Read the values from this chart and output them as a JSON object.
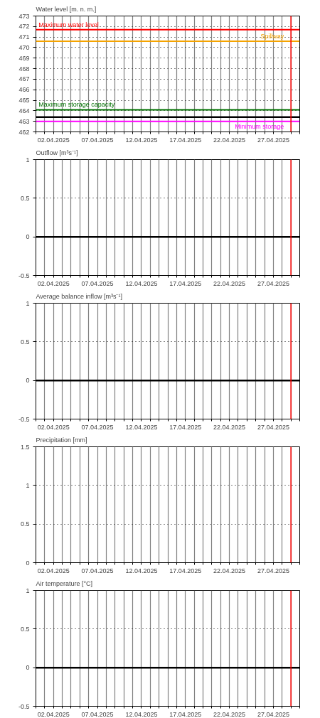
{
  "chart_data": [
    {
      "type": "line",
      "title": "Water level [m. n. m.]",
      "xlim": [
        "2025-03-31",
        "2025-04-30"
      ],
      "ylim": [
        462,
        473
      ],
      "yticks": [
        462,
        463,
        464,
        465,
        466,
        467,
        468,
        469,
        470,
        471,
        472,
        473
      ],
      "grid": true,
      "xticks": [
        {
          "value": "2025-03-31",
          "label": null
        },
        {
          "value": "2025-04-01",
          "label": null
        },
        {
          "value": "2025-04-02",
          "label": "02.04.2025"
        },
        {
          "value": "2025-04-03",
          "label": null
        },
        {
          "value": "2025-04-04",
          "label": null
        },
        {
          "value": "2025-04-05",
          "label": null
        },
        {
          "value": "2025-04-06",
          "label": null
        },
        {
          "value": "2025-04-07",
          "label": "07.04.2025"
        },
        {
          "value": "2025-04-08",
          "label": null
        },
        {
          "value": "2025-04-09",
          "label": null
        },
        {
          "value": "2025-04-10",
          "label": null
        },
        {
          "value": "2025-04-11",
          "label": null
        },
        {
          "value": "2025-04-12",
          "label": "12.04.2025"
        },
        {
          "value": "2025-04-13",
          "label": null
        },
        {
          "value": "2025-04-14",
          "label": null
        },
        {
          "value": "2025-04-15",
          "label": null
        },
        {
          "value": "2025-04-16",
          "label": null
        },
        {
          "value": "2025-04-17",
          "label": "17.04.2025"
        },
        {
          "value": "2025-04-18",
          "label": null
        },
        {
          "value": "2025-04-19",
          "label": null
        },
        {
          "value": "2025-04-20",
          "label": null
        },
        {
          "value": "2025-04-21",
          "label": null
        },
        {
          "value": "2025-04-22",
          "label": "22.04.2025"
        },
        {
          "value": "2025-04-23",
          "label": null
        },
        {
          "value": "2025-04-24",
          "label": null
        },
        {
          "value": "2025-04-25",
          "label": null
        },
        {
          "value": "2025-04-26",
          "label": null
        },
        {
          "value": "2025-04-27",
          "label": "27.04.2025"
        },
        {
          "value": "2025-04-28",
          "label": null
        },
        {
          "value": "2025-04-29",
          "label": null
        },
        {
          "value": "2025-04-30",
          "label": null
        }
      ],
      "ref_lines": [
        {
          "axis": "y",
          "value": 471.7,
          "label": "Maximum water level",
          "color": "#ff0000"
        },
        {
          "axis": "y",
          "value": 470.6,
          "label": "Spillway",
          "color": "#f5a300"
        },
        {
          "axis": "y",
          "value": 464.1,
          "label": "Maximum storage capacity",
          "color": "#007000"
        },
        {
          "axis": "y",
          "value": 463.4,
          "color": "#000000"
        },
        {
          "axis": "y",
          "value": 463.0,
          "label": "Minimum storage",
          "color": "#ff00ff"
        },
        {
          "axis": "x",
          "value": "2025-04-29",
          "color": "#ff0000"
        }
      ]
    },
    {
      "type": "line",
      "title": "Outflow [m³s⁻¹]",
      "xlim": [
        "2025-03-31",
        "2025-04-30"
      ],
      "ylim": [
        -0.5,
        1
      ],
      "yticks": [
        -0.5,
        0,
        0.5,
        1
      ],
      "grid": true,
      "xticks": [
        {
          "value": "2025-03-31",
          "label": null
        },
        {
          "value": "2025-04-01",
          "label": null
        },
        {
          "value": "2025-04-02",
          "label": "02.04.2025"
        },
        {
          "value": "2025-04-03",
          "label": null
        },
        {
          "value": "2025-04-04",
          "label": null
        },
        {
          "value": "2025-04-05",
          "label": null
        },
        {
          "value": "2025-04-06",
          "label": null
        },
        {
          "value": "2025-04-07",
          "label": "07.04.2025"
        },
        {
          "value": "2025-04-08",
          "label": null
        },
        {
          "value": "2025-04-09",
          "label": null
        },
        {
          "value": "2025-04-10",
          "label": null
        },
        {
          "value": "2025-04-11",
          "label": null
        },
        {
          "value": "2025-04-12",
          "label": "12.04.2025"
        },
        {
          "value": "2025-04-13",
          "label": null
        },
        {
          "value": "2025-04-14",
          "label": null
        },
        {
          "value": "2025-04-15",
          "label": null
        },
        {
          "value": "2025-04-16",
          "label": null
        },
        {
          "value": "2025-04-17",
          "label": "17.04.2025"
        },
        {
          "value": "2025-04-18",
          "label": null
        },
        {
          "value": "2025-04-19",
          "label": null
        },
        {
          "value": "2025-04-20",
          "label": null
        },
        {
          "value": "2025-04-21",
          "label": null
        },
        {
          "value": "2025-04-22",
          "label": "22.04.2025"
        },
        {
          "value": "2025-04-23",
          "label": null
        },
        {
          "value": "2025-04-24",
          "label": null
        },
        {
          "value": "2025-04-25",
          "label": null
        },
        {
          "value": "2025-04-26",
          "label": null
        },
        {
          "value": "2025-04-27",
          "label": "27.04.2025"
        },
        {
          "value": "2025-04-28",
          "label": null
        },
        {
          "value": "2025-04-29",
          "label": null
        },
        {
          "value": "2025-04-30",
          "label": null
        }
      ],
      "ref_lines": [
        {
          "axis": "y",
          "value": 0,
          "color": "#000000"
        },
        {
          "axis": "x",
          "value": "2025-04-29",
          "color": "#ff0000"
        }
      ]
    },
    {
      "type": "line",
      "title": "Average balance inflow  [m³s⁻¹]",
      "xlim": [
        "2025-03-31",
        "2025-04-30"
      ],
      "ylim": [
        -0.5,
        1
      ],
      "yticks": [
        -0.5,
        0,
        0.5,
        1
      ],
      "grid": true,
      "xticks": [
        {
          "value": "2025-03-31",
          "label": null
        },
        {
          "value": "2025-04-01",
          "label": null
        },
        {
          "value": "2025-04-02",
          "label": "02.04.2025"
        },
        {
          "value": "2025-04-03",
          "label": null
        },
        {
          "value": "2025-04-04",
          "label": null
        },
        {
          "value": "2025-04-05",
          "label": null
        },
        {
          "value": "2025-04-06",
          "label": null
        },
        {
          "value": "2025-04-07",
          "label": "07.04.2025"
        },
        {
          "value": "2025-04-08",
          "label": null
        },
        {
          "value": "2025-04-09",
          "label": null
        },
        {
          "value": "2025-04-10",
          "label": null
        },
        {
          "value": "2025-04-11",
          "label": null
        },
        {
          "value": "2025-04-12",
          "label": "12.04.2025"
        },
        {
          "value": "2025-04-13",
          "label": null
        },
        {
          "value": "2025-04-14",
          "label": null
        },
        {
          "value": "2025-04-15",
          "label": null
        },
        {
          "value": "2025-04-16",
          "label": null
        },
        {
          "value": "2025-04-17",
          "label": "17.04.2025"
        },
        {
          "value": "2025-04-18",
          "label": null
        },
        {
          "value": "2025-04-19",
          "label": null
        },
        {
          "value": "2025-04-20",
          "label": null
        },
        {
          "value": "2025-04-21",
          "label": null
        },
        {
          "value": "2025-04-22",
          "label": "22.04.2025"
        },
        {
          "value": "2025-04-23",
          "label": null
        },
        {
          "value": "2025-04-24",
          "label": null
        },
        {
          "value": "2025-04-25",
          "label": null
        },
        {
          "value": "2025-04-26",
          "label": null
        },
        {
          "value": "2025-04-27",
          "label": "27.04.2025"
        },
        {
          "value": "2025-04-28",
          "label": null
        },
        {
          "value": "2025-04-29",
          "label": null
        },
        {
          "value": "2025-04-30",
          "label": null
        }
      ],
      "ref_lines": [
        {
          "axis": "y",
          "value": 0,
          "color": "#000000"
        },
        {
          "axis": "x",
          "value": "2025-04-29",
          "color": "#ff0000"
        }
      ]
    },
    {
      "type": "line",
      "title": "Precipitation [mm]",
      "xlim": [
        "2025-03-31",
        "2025-04-30"
      ],
      "ylim": [
        0,
        1.5
      ],
      "yticks": [
        0,
        0.5,
        1,
        1.5
      ],
      "grid": true,
      "xticks": [
        {
          "value": "2025-03-31",
          "label": null
        },
        {
          "value": "2025-04-01",
          "label": null
        },
        {
          "value": "2025-04-02",
          "label": "02.04.2025"
        },
        {
          "value": "2025-04-03",
          "label": null
        },
        {
          "value": "2025-04-04",
          "label": null
        },
        {
          "value": "2025-04-05",
          "label": null
        },
        {
          "value": "2025-04-06",
          "label": null
        },
        {
          "value": "2025-04-07",
          "label": "07.04.2025"
        },
        {
          "value": "2025-04-08",
          "label": null
        },
        {
          "value": "2025-04-09",
          "label": null
        },
        {
          "value": "2025-04-10",
          "label": null
        },
        {
          "value": "2025-04-11",
          "label": null
        },
        {
          "value": "2025-04-12",
          "label": "12.04.2025"
        },
        {
          "value": "2025-04-13",
          "label": null
        },
        {
          "value": "2025-04-14",
          "label": null
        },
        {
          "value": "2025-04-15",
          "label": null
        },
        {
          "value": "2025-04-16",
          "label": null
        },
        {
          "value": "2025-04-17",
          "label": "17.04.2025"
        },
        {
          "value": "2025-04-18",
          "label": null
        },
        {
          "value": "2025-04-19",
          "label": null
        },
        {
          "value": "2025-04-20",
          "label": null
        },
        {
          "value": "2025-04-21",
          "label": null
        },
        {
          "value": "2025-04-22",
          "label": "22.04.2025"
        },
        {
          "value": "2025-04-23",
          "label": null
        },
        {
          "value": "2025-04-24",
          "label": null
        },
        {
          "value": "2025-04-25",
          "label": null
        },
        {
          "value": "2025-04-26",
          "label": null
        },
        {
          "value": "2025-04-27",
          "label": "27.04.2025"
        },
        {
          "value": "2025-04-28",
          "label": null
        },
        {
          "value": "2025-04-29",
          "label": null
        },
        {
          "value": "2025-04-30",
          "label": null
        }
      ],
      "ref_lines": [
        {
          "axis": "x",
          "value": "2025-04-29",
          "color": "#ff0000"
        }
      ]
    },
    {
      "type": "line",
      "title": "Air temperature [°C]",
      "xlim": [
        "2025-03-31",
        "2025-04-30"
      ],
      "ylim": [
        -0.5,
        1
      ],
      "yticks": [
        -0.5,
        0,
        0.5,
        1
      ],
      "grid": true,
      "xticks": [
        {
          "value": "2025-03-31",
          "label": null
        },
        {
          "value": "2025-04-01",
          "label": null
        },
        {
          "value": "2025-04-02",
          "label": "02.04.2025"
        },
        {
          "value": "2025-04-03",
          "label": null
        },
        {
          "value": "2025-04-04",
          "label": null
        },
        {
          "value": "2025-04-05",
          "label": null
        },
        {
          "value": "2025-04-06",
          "label": null
        },
        {
          "value": "2025-04-07",
          "label": "07.04.2025"
        },
        {
          "value": "2025-04-08",
          "label": null
        },
        {
          "value": "2025-04-09",
          "label": null
        },
        {
          "value": "2025-04-10",
          "label": null
        },
        {
          "value": "2025-04-11",
          "label": null
        },
        {
          "value": "2025-04-12",
          "label": "12.04.2025"
        },
        {
          "value": "2025-04-13",
          "label": null
        },
        {
          "value": "2025-04-14",
          "label": null
        },
        {
          "value": "2025-04-15",
          "label": null
        },
        {
          "value": "2025-04-16",
          "label": null
        },
        {
          "value": "2025-04-17",
          "label": "17.04.2025"
        },
        {
          "value": "2025-04-18",
          "label": null
        },
        {
          "value": "2025-04-19",
          "label": null
        },
        {
          "value": "2025-04-20",
          "label": null
        },
        {
          "value": "2025-04-21",
          "label": null
        },
        {
          "value": "2025-04-22",
          "label": "22.04.2025"
        },
        {
          "value": "2025-04-23",
          "label": null
        },
        {
          "value": "2025-04-24",
          "label": null
        },
        {
          "value": "2025-04-25",
          "label": null
        },
        {
          "value": "2025-04-26",
          "label": null
        },
        {
          "value": "2025-04-27",
          "label": "27.04.2025"
        },
        {
          "value": "2025-04-28",
          "label": null
        },
        {
          "value": "2025-04-29",
          "label": null
        },
        {
          "value": "2025-04-30",
          "label": null
        }
      ],
      "ref_lines": [
        {
          "axis": "y",
          "value": 0,
          "color": "#000000"
        },
        {
          "axis": "x",
          "value": "2025-04-29",
          "color": "#ff0000"
        }
      ]
    }
  ]
}
